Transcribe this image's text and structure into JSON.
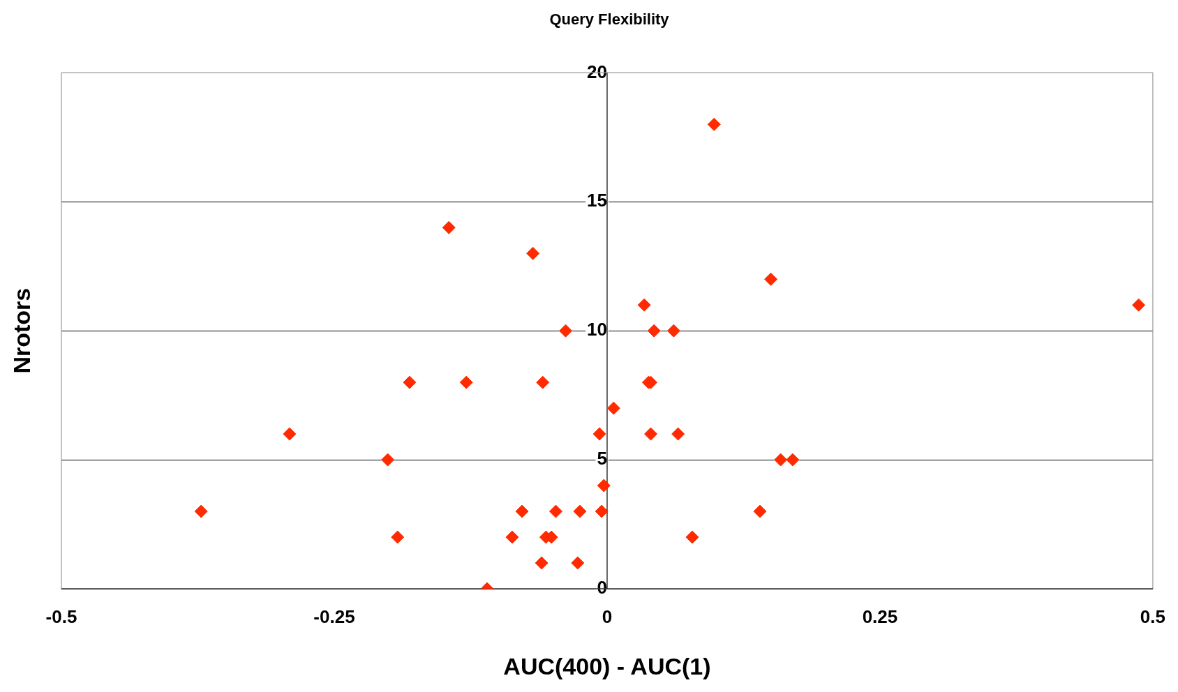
{
  "chart_data": {
    "type": "scatter",
    "title": "Query Flexibility",
    "xlabel": "AUC(400) - AUC(1)",
    "ylabel": "Nrotors",
    "xlim": [
      -0.5,
      0.5
    ],
    "xticks": [
      -0.5,
      -0.25,
      0,
      0.25,
      0.5
    ],
    "ylim": [
      0,
      20
    ],
    "yticks": [
      0,
      5,
      10,
      15,
      20
    ],
    "grid": "y",
    "marker": "diamond",
    "legend": false,
    "series": [
      {
        "color": "#ff2a00",
        "x": [
          0.098,
          -0.145,
          -0.068,
          0.15,
          0.034,
          0.487,
          -0.038,
          0.043,
          0.061,
          -0.181,
          -0.129,
          -0.059,
          0.038,
          0.04,
          0.006,
          -0.291,
          -0.007,
          0.04,
          0.065,
          -0.201,
          0.159,
          0.17,
          -0.003,
          -0.372,
          -0.078,
          -0.047,
          -0.025,
          -0.005,
          0.14,
          -0.192,
          -0.087,
          -0.056,
          -0.051,
          0.078,
          -0.06,
          -0.027,
          -0.11
        ],
        "values": [
          18,
          14,
          13,
          12,
          11,
          11,
          10,
          10,
          10,
          8,
          8,
          8,
          8,
          8,
          7,
          6,
          6,
          6,
          6,
          5,
          5,
          5,
          4,
          3,
          3,
          3,
          3,
          3,
          3,
          2,
          2,
          2,
          2,
          2,
          1,
          1,
          0
        ]
      }
    ]
  }
}
